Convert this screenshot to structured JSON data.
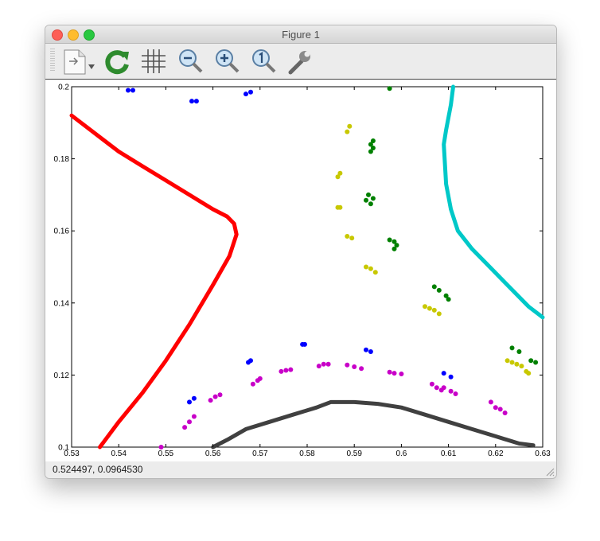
{
  "window": {
    "title": "Figure 1"
  },
  "toolbar": {
    "tools": [
      {
        "name": "save-menu-icon",
        "tooltip": ""
      },
      {
        "name": "refresh-icon",
        "tooltip": ""
      },
      {
        "name": "grid-icon",
        "tooltip": ""
      },
      {
        "name": "zoom-out-icon",
        "tooltip": ""
      },
      {
        "name": "zoom-in-icon",
        "tooltip": ""
      },
      {
        "name": "zoom-reset-icon",
        "tooltip": ""
      },
      {
        "name": "wrench-icon",
        "tooltip": ""
      }
    ]
  },
  "status": {
    "coords": "0.524497,  0.0964530"
  },
  "colors": {
    "red": "#ff0000",
    "blue": "#0000ff",
    "green": "#008000",
    "olive": "#c8c800",
    "magenta": "#c800c8",
    "cyan": "#00c8c8",
    "dark": "#404040"
  },
  "chart_data": {
    "type": "scatter",
    "xlim": [
      0.53,
      0.63
    ],
    "ylim": [
      0.1,
      0.2
    ],
    "xticks": [
      "0.53",
      "0.54",
      "0.55",
      "0.56",
      "0.57",
      "0.58",
      "0.59",
      "0.6",
      "0.61",
      "0.62",
      "0.63"
    ],
    "yticks": [
      "0.1",
      "0.12",
      "0.14",
      "0.16",
      "0.18",
      "0.2"
    ],
    "grid": false,
    "series": [
      {
        "color": "red",
        "mode": "line",
        "x": [
          0.536,
          0.54,
          0.545,
          0.55,
          0.555,
          0.56,
          0.5635,
          0.565,
          0.5645,
          0.563,
          0.56,
          0.555,
          0.55,
          0.545,
          0.54,
          0.535,
          0.53
        ],
        "y": [
          0.1,
          0.107,
          0.115,
          0.124,
          0.134,
          0.145,
          0.153,
          0.159,
          0.162,
          0.164,
          0.166,
          0.17,
          0.174,
          0.178,
          0.182,
          0.187,
          0.192
        ]
      },
      {
        "color": "cyan",
        "mode": "line",
        "x": [
          0.63,
          0.627,
          0.624,
          0.621,
          0.618,
          0.615,
          0.612,
          0.6105,
          0.6095,
          0.609,
          0.6095,
          0.6105,
          0.611
        ],
        "y": [
          0.136,
          0.139,
          0.143,
          0.147,
          0.151,
          0.155,
          0.16,
          0.166,
          0.173,
          0.184,
          0.188,
          0.195,
          0.2
        ]
      },
      {
        "color": "dark",
        "mode": "line",
        "x": [
          0.56,
          0.563,
          0.567,
          0.572,
          0.577,
          0.582,
          0.585,
          0.59,
          0.595,
          0.6,
          0.605,
          0.61,
          0.615,
          0.62,
          0.625,
          0.628
        ],
        "y": [
          0.1,
          0.102,
          0.105,
          0.107,
          0.109,
          0.111,
          0.1125,
          0.1125,
          0.112,
          0.111,
          0.109,
          0.107,
          0.105,
          0.103,
          0.101,
          0.1005
        ]
      },
      {
        "color": "blue",
        "mode": "points",
        "x": [
          0.542,
          0.543,
          0.5555,
          0.5565,
          0.567,
          0.568,
          0.555,
          0.556,
          0.5675,
          0.568,
          0.579,
          0.5795,
          0.5925,
          0.5935,
          0.609,
          0.6105
        ],
        "y": [
          0.199,
          0.199,
          0.196,
          0.196,
          0.198,
          0.1985,
          0.1125,
          0.1135,
          0.1235,
          0.124,
          0.1285,
          0.1285,
          0.127,
          0.1265,
          0.1205,
          0.1195
        ]
      },
      {
        "color": "magenta",
        "mode": "points",
        "x": [
          0.554,
          0.555,
          0.556,
          0.5595,
          0.5605,
          0.5615,
          0.5685,
          0.5695,
          0.57,
          0.5745,
          0.5755,
          0.5765,
          0.5825,
          0.5835,
          0.5845,
          0.5885,
          0.59,
          0.5915,
          0.5975,
          0.5985,
          0.6,
          0.6065,
          0.6075,
          0.6085,
          0.609,
          0.6105,
          0.6115,
          0.619,
          0.62,
          0.621,
          0.622,
          0.549
        ],
        "y": [
          0.1055,
          0.107,
          0.1085,
          0.113,
          0.114,
          0.1145,
          0.1175,
          0.1185,
          0.119,
          0.121,
          0.1213,
          0.1215,
          0.1225,
          0.123,
          0.123,
          0.1228,
          0.1223,
          0.1218,
          0.1208,
          0.1205,
          0.1203,
          0.1175,
          0.1165,
          0.1158,
          0.1165,
          0.1155,
          0.1148,
          0.1125,
          0.111,
          0.1105,
          0.1095,
          0.1
        ]
      },
      {
        "color": "olive",
        "mode": "points",
        "x": [
          0.5885,
          0.589,
          0.5865,
          0.587,
          0.5865,
          0.587,
          0.5885,
          0.5895,
          0.5925,
          0.5935,
          0.5945,
          0.605,
          0.606,
          0.607,
          0.608,
          0.6225,
          0.6235,
          0.6245,
          0.6255,
          0.6265,
          0.627
        ],
        "y": [
          0.1875,
          0.189,
          0.175,
          0.176,
          0.1665,
          0.1665,
          0.1585,
          0.158,
          0.15,
          0.1495,
          0.1485,
          0.139,
          0.1385,
          0.138,
          0.137,
          0.124,
          0.1235,
          0.123,
          0.1225,
          0.121,
          0.1205
        ]
      },
      {
        "color": "green",
        "mode": "points",
        "x": [
          0.5975,
          0.5935,
          0.594,
          0.5935,
          0.594,
          0.593,
          0.594,
          0.5935,
          0.5925,
          0.5975,
          0.5985,
          0.599,
          0.5985,
          0.607,
          0.608,
          0.6095,
          0.61,
          0.6235,
          0.625,
          0.6275,
          0.6285
        ],
        "y": [
          0.1995,
          0.184,
          0.185,
          0.182,
          0.183,
          0.17,
          0.169,
          0.1675,
          0.1685,
          0.1575,
          0.157,
          0.156,
          0.155,
          0.1445,
          0.1435,
          0.142,
          0.141,
          0.1275,
          0.1265,
          0.124,
          0.1235
        ]
      }
    ]
  }
}
